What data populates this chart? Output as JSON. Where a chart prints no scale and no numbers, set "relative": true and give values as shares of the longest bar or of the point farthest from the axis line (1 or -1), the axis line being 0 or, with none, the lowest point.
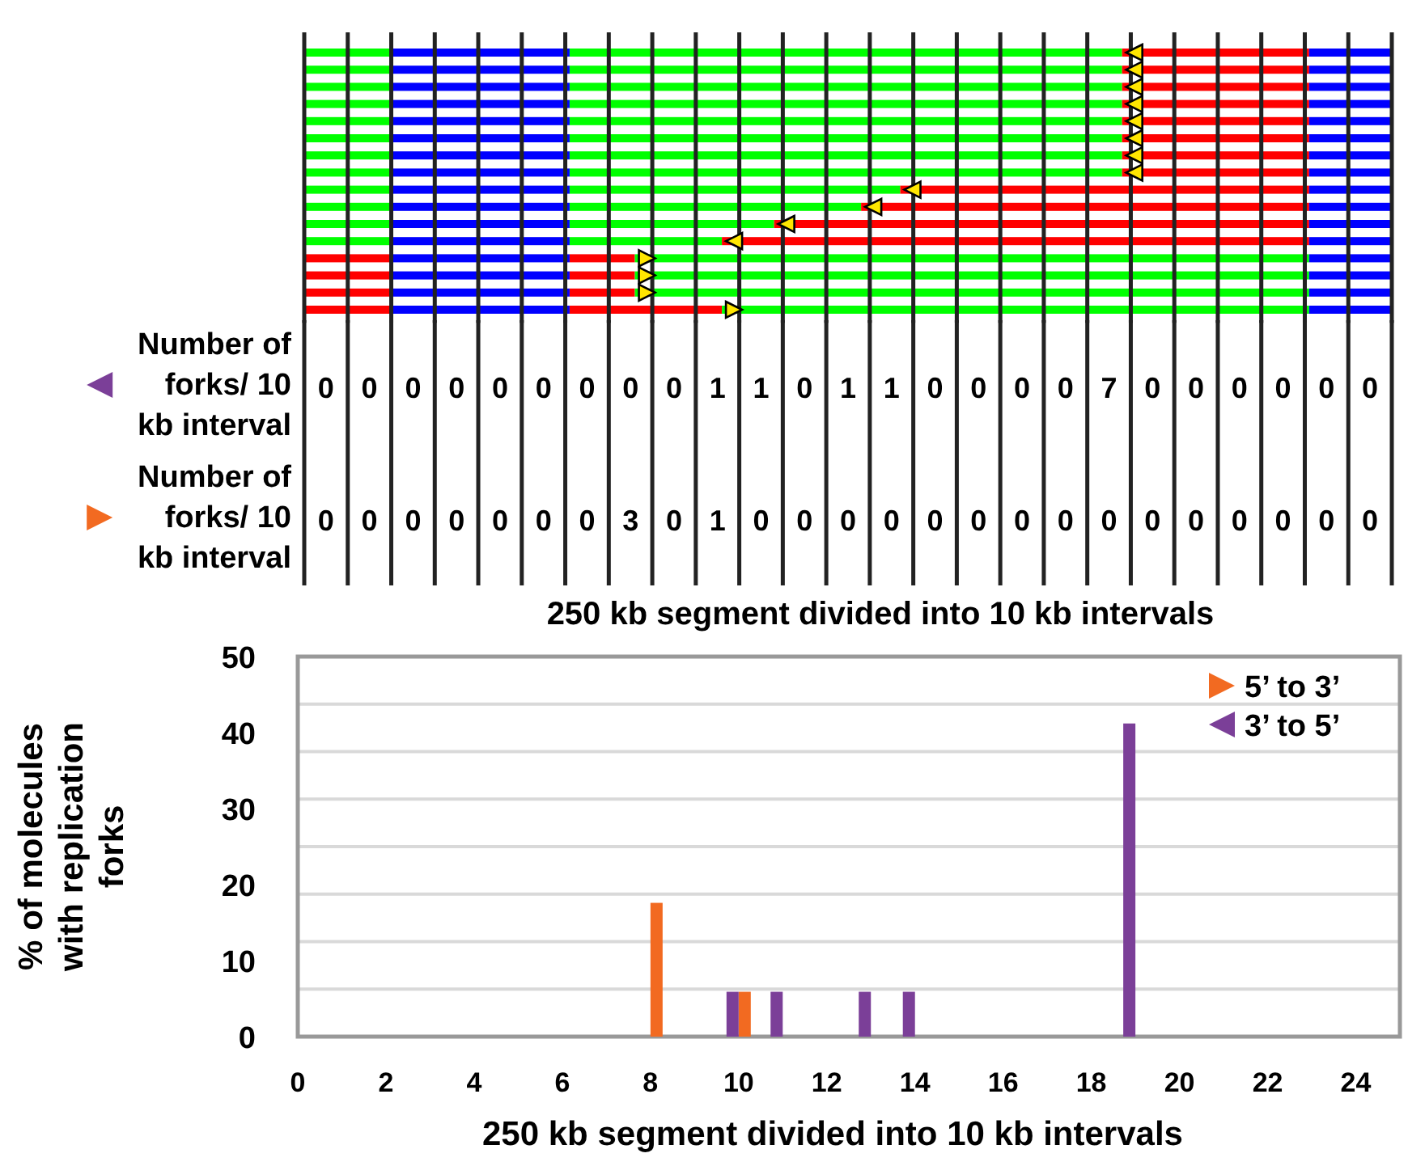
{
  "chart_data": [
    {
      "type": "bar",
      "orientation": "horizontal",
      "stacked": true,
      "relative": true,
      "categories": [
        null,
        null,
        null,
        null,
        null,
        null,
        null,
        null,
        null,
        null,
        null,
        null,
        null,
        null,
        null,
        null
      ],
      "series": [
        {
          "colors": [
            "#00ff00",
            "#00ff00",
            "#00ff00",
            "#00ff00",
            "#00ff00",
            "#00ff00",
            "#00ff00",
            "#00ff00",
            "#00ff00",
            "#00ff00",
            "#00ff00",
            "#00ff00",
            "#ff0000",
            "#ff0000",
            "#ff0000",
            "#ff0000"
          ],
          "values": [
            0.08,
            0.08,
            0.08,
            0.08,
            0.08,
            0.08,
            0.08,
            0.08,
            0.08,
            0.08,
            0.08,
            0.08,
            0.08,
            0.08,
            0.08,
            0.08
          ]
        },
        {
          "color": "#0000ff",
          "values": [
            0.164,
            0.164,
            0.164,
            0.164,
            0.164,
            0.164,
            0.164,
            0.164,
            0.164,
            0.164,
            0.164,
            0.164,
            0.164,
            0.164,
            0.164,
            0.164
          ]
        },
        {
          "colors": [
            "#00ff00",
            "#00ff00",
            "#00ff00",
            "#00ff00",
            "#00ff00",
            "#00ff00",
            "#00ff00",
            "#00ff00",
            "#00ff00",
            "#00ff00",
            "#00ff00",
            "#00ff00",
            "#ff0000",
            "#ff0000",
            "#ff0000",
            "#ff0000"
          ],
          "values": [
            0.508,
            0.508,
            0.508,
            0.508,
            0.508,
            0.508,
            0.508,
            0.508,
            0.304,
            0.268,
            0.188,
            0.14,
            0.06,
            0.06,
            0.06,
            0.14
          ]
        },
        {
          "colors": [
            "#ff0000",
            "#ff0000",
            "#ff0000",
            "#ff0000",
            "#ff0000",
            "#ff0000",
            "#ff0000",
            "#ff0000",
            "#ff0000",
            "#ff0000",
            "#ff0000",
            "#ff0000",
            "#00ff00",
            "#00ff00",
            "#00ff00",
            "#00ff00"
          ],
          "values": [
            0.172,
            0.172,
            0.172,
            0.172,
            0.172,
            0.172,
            0.172,
            0.172,
            0.376,
            0.412,
            0.492,
            0.54,
            0.62,
            0.62,
            0.62,
            0.54
          ]
        },
        {
          "color": "#0000ff",
          "values": [
            0.076,
            0.076,
            0.076,
            0.076,
            0.076,
            0.076,
            0.076,
            0.076,
            0.076,
            0.076,
            0.076,
            0.076,
            0.076,
            0.076,
            0.076,
            0.076
          ]
        }
      ]
    },
    {
      "type": "heatmap",
      "data_labels": true,
      "xlabel": "250 kb segment divided into 10 kb intervals",
      "categories": [
        null,
        null,
        null,
        null,
        null,
        null,
        null,
        null,
        null,
        null,
        null,
        null,
        null,
        null,
        null,
        null,
        null,
        null,
        null,
        null,
        null,
        null,
        null,
        null,
        null
      ],
      "y_categories": [
        "Number of forks/ 10 kb interval",
        "Number of forks/ 10 kb interval"
      ],
      "cells": [
        [
          0,
          0,
          0,
          0,
          0,
          0,
          0,
          0,
          0,
          1,
          1,
          0,
          1,
          1,
          0,
          0,
          0,
          0,
          7,
          0,
          0,
          0,
          0,
          0,
          0
        ],
        [
          0,
          0,
          0,
          0,
          0,
          0,
          0,
          3,
          0,
          1,
          0,
          0,
          0,
          0,
          0,
          0,
          0,
          0,
          0,
          0,
          0,
          0,
          0,
          0,
          0
        ]
      ]
    },
    {
      "type": "bar",
      "xlabel": "250 kb segment divided into 10 kb intervals",
      "ylabel": "% of molecules with replication forks",
      "xlim": [
        0,
        25
      ],
      "xticks": [
        0,
        2,
        4,
        6,
        8,
        10,
        12,
        14,
        16,
        18,
        20,
        22,
        24
      ],
      "ylim": [
        0,
        50
      ],
      "yticks": [
        0,
        10,
        20,
        30,
        40,
        50
      ],
      "legend": "top right",
      "ref_lines": [
        {
          "axis": "y",
          "value": 6.25,
          "color": "#d9d9d9"
        },
        {
          "axis": "y",
          "value": 12.5,
          "color": "#d9d9d9"
        },
        {
          "axis": "y",
          "value": 18.75,
          "color": "#d9d9d9"
        },
        {
          "axis": "y",
          "value": 25,
          "color": "#d9d9d9"
        },
        {
          "axis": "y",
          "value": 31.25,
          "color": "#d9d9d9"
        },
        {
          "axis": "y",
          "value": 37.5,
          "color": "#d9d9d9"
        },
        {
          "axis": "y",
          "value": 43.75,
          "color": "#d9d9d9"
        }
      ],
      "series": [
        {
          "name": "5’ to 3’",
          "color": "#f26a21",
          "x": [
            8,
            10
          ],
          "values": [
            17.6,
            5.9
          ]
        },
        {
          "name": "3’ to 5’",
          "color": "#7b3f98",
          "x": [
            10,
            11,
            13,
            14,
            19
          ],
          "values": [
            5.9,
            5.9,
            5.9,
            5.9,
            41.2
          ]
        }
      ]
    }
  ]
}
